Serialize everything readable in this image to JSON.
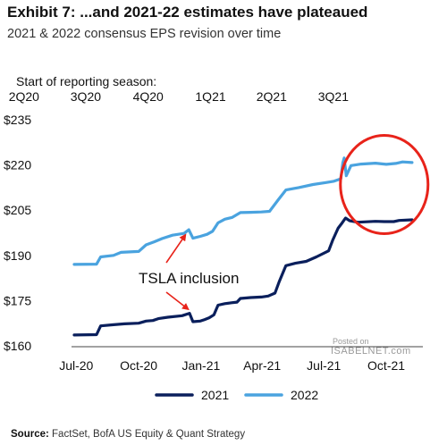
{
  "header": {
    "title": "Exhibit 7: ...and 2021-22 estimates have plateaued",
    "subtitle": "2021 & 2022 consensus EPS revision over time"
  },
  "season": {
    "label": "Start of reporting season:",
    "ticks": [
      {
        "label": "2Q20",
        "date": "2020-04-15"
      },
      {
        "label": "3Q20",
        "date": "2020-07-15"
      },
      {
        "label": "4Q20",
        "date": "2020-10-15"
      },
      {
        "label": "1Q21",
        "date": "2021-01-15"
      },
      {
        "label": "2Q21",
        "date": "2021-04-15"
      },
      {
        "label": "3Q21",
        "date": "2021-07-15"
      }
    ]
  },
  "chart_data": {
    "type": "line",
    "x_type": "date",
    "xlim": [
      "2020-06-28",
      "2021-11-20"
    ],
    "ylim": [
      160,
      235
    ],
    "yticks": [
      160,
      175,
      190,
      205,
      220,
      235
    ],
    "ytick_labels": [
      "$160",
      "$175",
      "$190",
      "$205",
      "$220",
      "$235"
    ],
    "xticks": [
      {
        "label": "Jul-20",
        "date": "2020-07-01"
      },
      {
        "label": "Oct-20",
        "date": "2020-10-01"
      },
      {
        "label": "Jan-21",
        "date": "2021-01-01"
      },
      {
        "label": "Apr-21",
        "date": "2021-04-01"
      },
      {
        "label": "Jul-21",
        "date": "2021-07-01"
      },
      {
        "label": "Oct-21",
        "date": "2021-10-01"
      }
    ],
    "grid": false,
    "legend_position": "bottom-center",
    "series": [
      {
        "name": "2021",
        "color": "#0a1f5c",
        "points": [
          [
            "2020-06-28",
            163.6
          ],
          [
            "2020-07-31",
            163.7
          ],
          [
            "2020-08-06",
            166.6
          ],
          [
            "2020-08-25",
            167.0
          ],
          [
            "2020-09-10",
            167.3
          ],
          [
            "2020-10-01",
            167.5
          ],
          [
            "2020-10-12",
            168.2
          ],
          [
            "2020-10-22",
            168.4
          ],
          [
            "2020-10-30",
            169.0
          ],
          [
            "2020-11-13",
            169.5
          ],
          [
            "2020-12-04",
            170.0
          ],
          [
            "2020-12-15",
            170.8
          ],
          [
            "2020-12-20",
            168.0
          ],
          [
            "2020-12-31",
            168.2
          ],
          [
            "2021-01-06",
            168.7
          ],
          [
            "2021-01-13",
            169.3
          ],
          [
            "2021-01-20",
            170.3
          ],
          [
            "2021-01-26",
            173.5
          ],
          [
            "2021-02-05",
            174.0
          ],
          [
            "2021-02-15",
            174.3
          ],
          [
            "2021-02-23",
            174.5
          ],
          [
            "2021-02-28",
            175.7
          ],
          [
            "2021-03-15",
            176.0
          ],
          [
            "2021-03-31",
            176.2
          ],
          [
            "2021-04-10",
            176.5
          ],
          [
            "2021-04-20",
            177.5
          ],
          [
            "2021-04-26",
            181.2
          ],
          [
            "2021-05-06",
            186.6
          ],
          [
            "2021-05-20",
            187.4
          ],
          [
            "2021-06-05",
            188.0
          ],
          [
            "2021-06-20",
            189.5
          ],
          [
            "2021-07-08",
            191.5
          ],
          [
            "2021-07-14",
            195.0
          ],
          [
            "2021-07-22",
            199.0
          ],
          [
            "2021-07-27",
            200.5
          ],
          [
            "2021-08-02",
            202.4
          ],
          [
            "2021-08-08",
            201.5
          ],
          [
            "2021-08-20",
            201.0
          ],
          [
            "2021-09-15",
            201.3
          ],
          [
            "2021-09-28",
            201.2
          ],
          [
            "2021-10-12",
            201.2
          ],
          [
            "2021-10-20",
            201.6
          ],
          [
            "2021-11-08",
            201.8
          ]
        ]
      },
      {
        "name": "2022",
        "color": "#4aa3df",
        "points": [
          [
            "2020-06-28",
            187.0
          ],
          [
            "2020-07-31",
            187.1
          ],
          [
            "2020-08-06",
            189.5
          ],
          [
            "2020-08-25",
            190.0
          ],
          [
            "2020-09-05",
            191.0
          ],
          [
            "2020-10-01",
            191.3
          ],
          [
            "2020-10-12",
            193.5
          ],
          [
            "2020-10-24",
            194.5
          ],
          [
            "2020-11-05",
            195.6
          ],
          [
            "2020-11-20",
            196.7
          ],
          [
            "2020-12-07",
            197.3
          ],
          [
            "2020-12-14",
            198.5
          ],
          [
            "2020-12-20",
            195.7
          ],
          [
            "2020-12-31",
            196.3
          ],
          [
            "2021-01-10",
            197.0
          ],
          [
            "2021-01-18",
            198.0
          ],
          [
            "2021-01-26",
            200.8
          ],
          [
            "2021-02-05",
            202.0
          ],
          [
            "2021-02-16",
            202.6
          ],
          [
            "2021-02-28",
            204.2
          ],
          [
            "2021-03-15",
            204.3
          ],
          [
            "2021-03-31",
            204.4
          ],
          [
            "2021-04-12",
            204.6
          ],
          [
            "2021-04-25",
            208.5
          ],
          [
            "2021-05-06",
            211.7
          ],
          [
            "2021-05-25",
            212.5
          ],
          [
            "2021-06-15",
            213.5
          ],
          [
            "2021-07-05",
            214.2
          ],
          [
            "2021-07-16",
            214.6
          ],
          [
            "2021-07-26",
            215.4
          ],
          [
            "2021-07-29",
            220.8
          ],
          [
            "2021-07-31",
            222.3
          ],
          [
            "2021-08-03",
            216.4
          ],
          [
            "2021-08-10",
            219.8
          ],
          [
            "2021-08-25",
            220.3
          ],
          [
            "2021-09-15",
            220.6
          ],
          [
            "2021-10-01",
            220.2
          ],
          [
            "2021-10-15",
            220.5
          ],
          [
            "2021-10-25",
            221.0
          ],
          [
            "2021-11-08",
            220.8
          ]
        ]
      }
    ],
    "annotations": [
      {
        "text": "TSLA inclusion",
        "points_to": [
          [
            "2020-12-14",
            198.5
          ],
          [
            "2020-12-18",
            171.0
          ]
        ]
      }
    ],
    "highlight": {
      "shape": "ellipse",
      "color": "#e8231a",
      "center": [
        "2021-09-28",
        213.5
      ]
    }
  },
  "footer": {
    "source_label": "Source:",
    "source_text": "FactSet, BofA US Equity & Quant Strategy"
  },
  "watermark": {
    "posted_on": "Posted on",
    "site": "ISABELNET.com"
  }
}
